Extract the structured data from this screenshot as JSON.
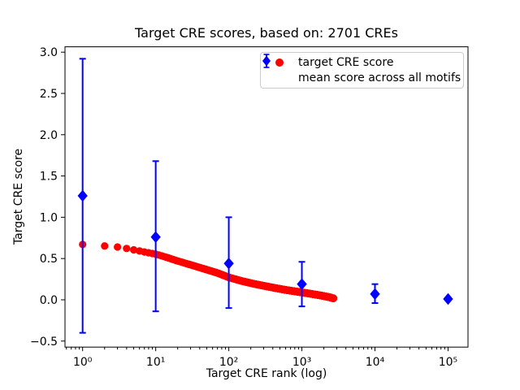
{
  "chart_data": {
    "type": "scatter",
    "title": "Target CRE scores, based on: 2701 CREs",
    "xlabel": "Target CRE rank (log)",
    "ylabel": "Target CRE score",
    "x_scale": "log",
    "xlim": [
      0.574,
      187500
    ],
    "ylim": [
      -0.573,
      3.065
    ],
    "grid": false,
    "legend_position": "upper right",
    "x_ticks": [
      {
        "value": 1,
        "label": "10⁰"
      },
      {
        "value": 10,
        "label": "10¹"
      },
      {
        "value": 100,
        "label": "10²"
      },
      {
        "value": 1000,
        "label": "10³"
      },
      {
        "value": 10000,
        "label": "10⁴"
      },
      {
        "value": 100000,
        "label": "10⁵"
      }
    ],
    "y_ticks": [
      3.0,
      2.5,
      2.0,
      1.5,
      1.0,
      0.5,
      0.0,
      -0.5
    ],
    "series": [
      {
        "name": "target CRE score",
        "marker": "circle",
        "color": "#ff0000",
        "n_points": 2701,
        "points_description": "target CRE score for each CRE rank 1..2701; dense monotonically decreasing band",
        "anchor_points": [
          [
            1,
            0.67
          ],
          [
            2,
            0.652
          ],
          [
            3,
            0.64
          ],
          [
            4,
            0.622
          ],
          [
            5,
            0.605
          ],
          [
            7,
            0.58
          ],
          [
            10,
            0.553
          ],
          [
            14,
            0.515
          ],
          [
            20,
            0.47
          ],
          [
            30,
            0.424
          ],
          [
            45,
            0.377
          ],
          [
            70,
            0.325
          ],
          [
            100,
            0.272
          ],
          [
            150,
            0.228
          ],
          [
            220,
            0.194
          ],
          [
            320,
            0.165
          ],
          [
            450,
            0.14
          ],
          [
            600,
            0.12
          ],
          [
            800,
            0.103
          ],
          [
            1000,
            0.09
          ],
          [
            1300,
            0.074
          ],
          [
            1700,
            0.057
          ],
          [
            2100,
            0.042
          ],
          [
            2400,
            0.031
          ],
          [
            2701,
            0.018
          ]
        ]
      },
      {
        "name": "mean score across all motifs",
        "marker": "diamond",
        "color": "#0000ff",
        "error_bars": true,
        "points": [
          {
            "x": 1,
            "y": 1.26,
            "y_lo": -0.4,
            "y_hi": 2.92
          },
          {
            "x": 10,
            "y": 0.76,
            "y_lo": -0.14,
            "y_hi": 1.68
          },
          {
            "x": 100,
            "y": 0.44,
            "y_lo": -0.1,
            "y_hi": 1.0
          },
          {
            "x": 1000,
            "y": 0.19,
            "y_lo": -0.08,
            "y_hi": 0.46
          },
          {
            "x": 10000,
            "y": 0.07,
            "y_lo": -0.04,
            "y_hi": 0.19
          },
          {
            "x": 100000,
            "y": 0.01,
            "y_lo": 0.01,
            "y_hi": 0.01
          }
        ]
      }
    ]
  },
  "colors": {
    "axes": "#000000",
    "background": "#ffffff",
    "legend_border": "#cccccc",
    "red_series": "#ff0000",
    "blue_series": "#0000ff"
  }
}
